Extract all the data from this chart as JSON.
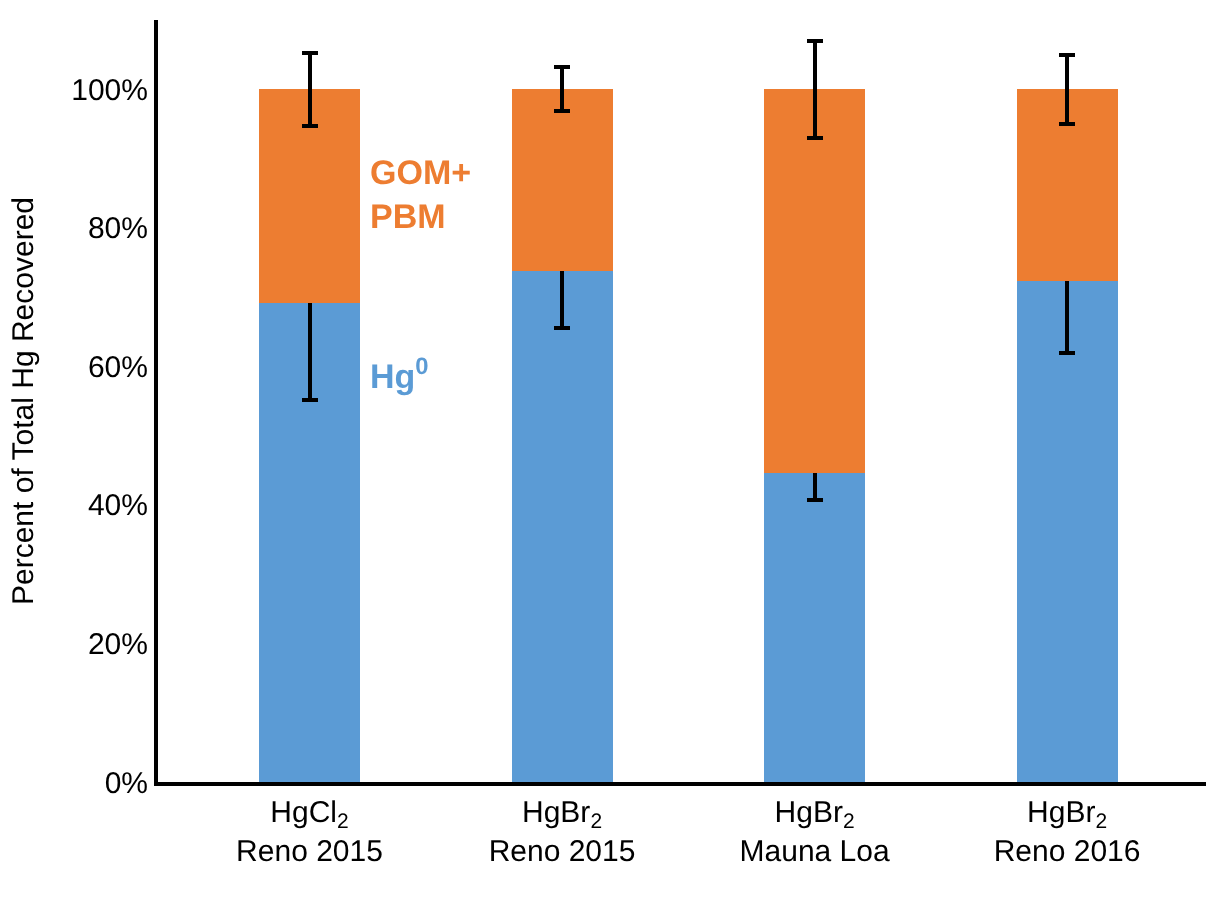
{
  "chart_data": {
    "type": "bar",
    "stacked": true,
    "ylabel": "Percent of Total Hg Recovered",
    "categories": [
      "HgCl$_{2}$\nReno 2015",
      "HgBr$_{2}$\nReno 2015",
      "HgBr$_{2}$\nMauna Loa",
      "HgBr$_{2}$\nReno 2016"
    ],
    "series": [
      {
        "name": "Hg$^{0}$",
        "color": "#5b9bd5",
        "values": [
          69.2,
          73.8,
          44.6,
          72.3
        ],
        "errors": [
          14,
          8.3,
          3.9,
          10.4
        ]
      },
      {
        "name": "GOM+\nPBM",
        "color": "#ed7d31",
        "values": [
          30.8,
          26.2,
          55.4,
          27.7
        ],
        "errors": [
          5.3,
          3.2,
          7,
          5
        ]
      }
    ],
    "ylim": [
      0,
      110
    ],
    "yticks": [
      {
        "value": 0,
        "label": "0%"
      },
      {
        "value": 20,
        "label": "20%"
      },
      {
        "value": 40,
        "label": "40%"
      },
      {
        "value": 60,
        "label": "60%"
      },
      {
        "value": 80,
        "label": "80%"
      },
      {
        "value": 100,
        "label": "100%"
      }
    ],
    "legend": false
  }
}
